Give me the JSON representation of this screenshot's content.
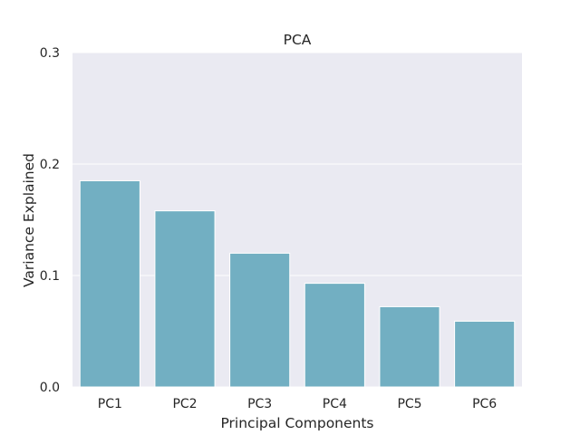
{
  "chart_data": {
    "type": "bar",
    "title": "PCA",
    "xlabel": "Principal Components",
    "ylabel": "Variance Explained",
    "categories": [
      "PC1",
      "PC2",
      "PC3",
      "PC4",
      "PC5",
      "PC6"
    ],
    "values": [
      0.185,
      0.158,
      0.12,
      0.093,
      0.072,
      0.059
    ],
    "ylim": [
      0,
      0.3
    ],
    "yticks": [
      "0.0",
      "0.1",
      "0.2",
      "0.3"
    ],
    "grid": true,
    "legend": "none",
    "colors": {
      "bar": "#72afc2",
      "plot_background": "#eaeaf2",
      "grid": "#ffffff",
      "text": "#262626"
    }
  }
}
